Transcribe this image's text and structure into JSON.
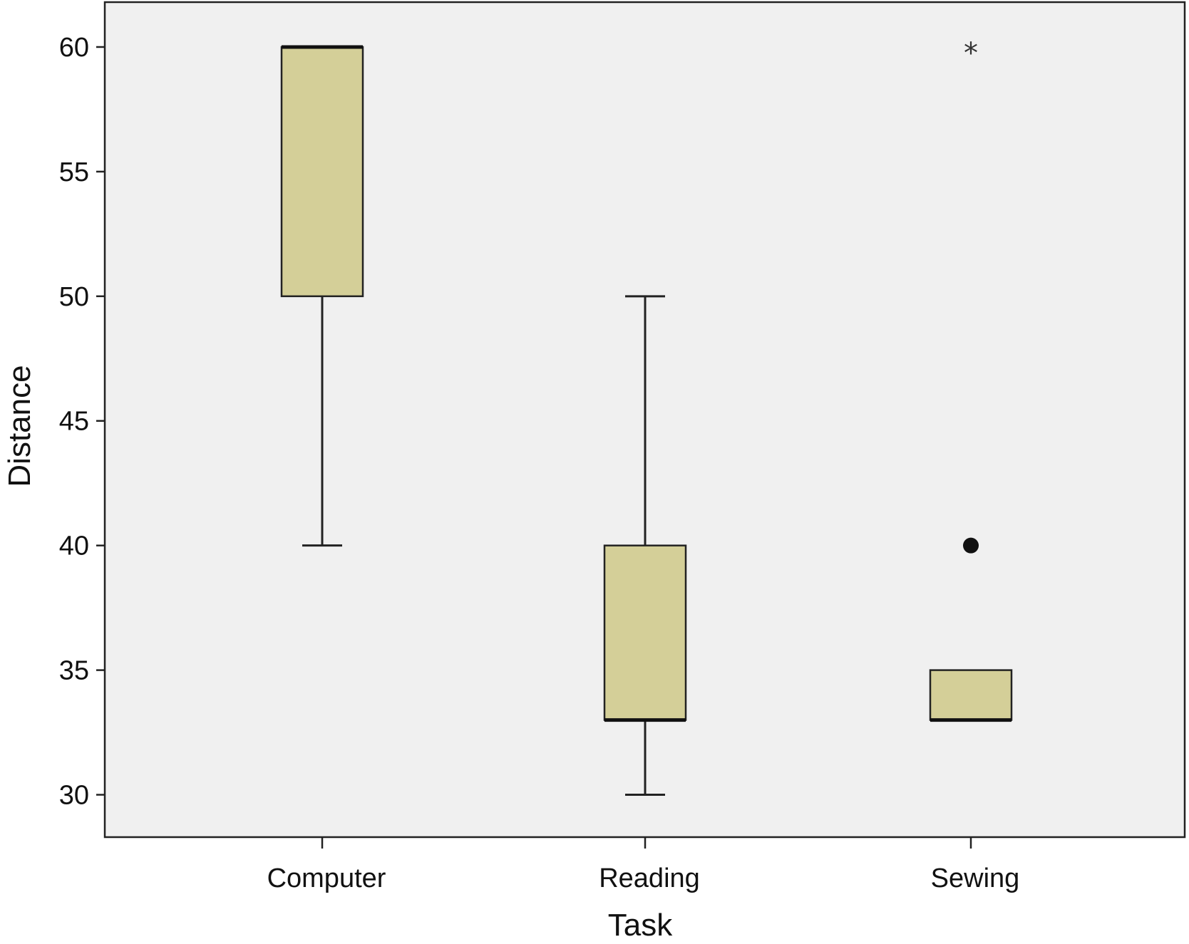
{
  "chart_data": {
    "type": "box",
    "title": "",
    "xlabel": "Task",
    "ylabel": "Distance",
    "ylim": [
      28.3,
      61.8
    ],
    "yticks": [
      30,
      35,
      40,
      45,
      50,
      55,
      60
    ],
    "grid": false,
    "categories": [
      "Computer",
      "Reading",
      "Sewing"
    ],
    "boxes": [
      {
        "category": "Computer",
        "whisker_low": 40,
        "q1": 50,
        "median": 60,
        "q3": 60,
        "whisker_high": 60,
        "outliers": [],
        "extremes": []
      },
      {
        "category": "Reading",
        "whisker_low": 30,
        "q1": 33,
        "median": 33,
        "q3": 40,
        "whisker_high": 50,
        "outliers": [],
        "extremes": []
      },
      {
        "category": "Sewing",
        "whisker_low": 33,
        "q1": 33,
        "median": 33,
        "q3": 35,
        "whisker_high": 35,
        "outliers": [
          40
        ],
        "extremes": [
          60
        ]
      }
    ],
    "colors": {
      "box_fill": "#d4cf98",
      "plot_background": "#f0f0f0",
      "line": "#222222"
    }
  }
}
